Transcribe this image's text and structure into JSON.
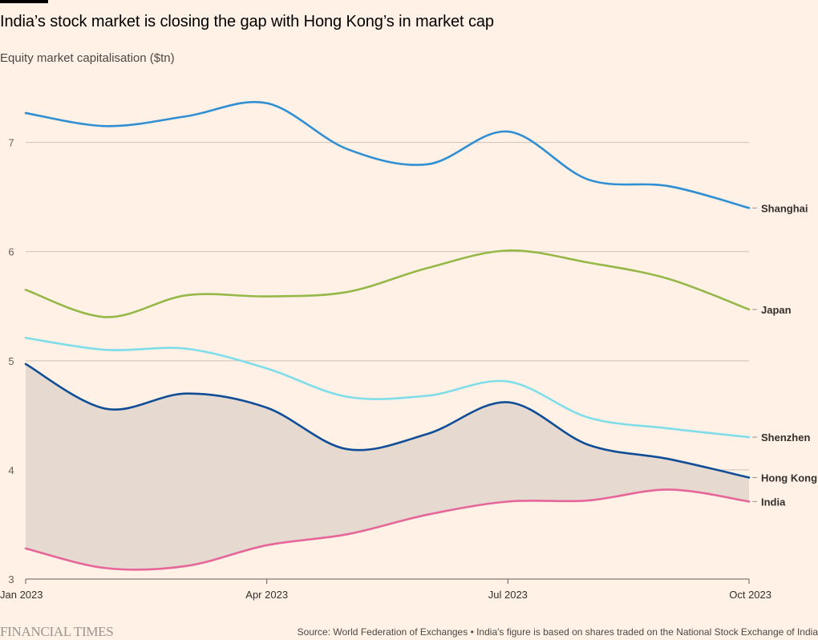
{
  "header": {
    "title": "India’s stock market is closing the gap with Hong Kong’s in market cap",
    "subtitle": "Equity market capitalisation ($tn)"
  },
  "footer": {
    "logo": "FINANCIAL TIMES",
    "source": "Source: World Federation of Exchanges • India's figure is based on shares traded on the National Stock Exchange of India"
  },
  "colors": {
    "background": "#fff1e5",
    "grid": "#ccc1b7",
    "shaded_gap": "#e5d9d0",
    "shanghai": "#2f8fd2",
    "japan": "#96b849",
    "shenzhen": "#7fdde9",
    "hong_kong": "#0f4e97",
    "india": "#e7669a"
  },
  "chart_data": {
    "type": "line",
    "x": [
      "Jan 2023",
      "Feb 2023",
      "Mar 2023",
      "Apr 2023",
      "May 2023",
      "Jun 2023",
      "Jul 2023",
      "Aug 2023",
      "Sep 2023",
      "Oct 2023"
    ],
    "x_ticks": [
      "Jan 2023",
      "Apr 2023",
      "Jul 2023",
      "Oct 2023"
    ],
    "y_ticks": [
      3,
      4,
      5,
      6,
      7
    ],
    "ylim": [
      3,
      7.6
    ],
    "grid": true,
    "shaded_area": {
      "between": [
        "Hong Kong",
        "India"
      ]
    },
    "series": [
      {
        "name": "Shanghai",
        "color": "#2f8fd2",
        "values": [
          7.27,
          7.15,
          7.24,
          7.36,
          6.94,
          6.8,
          7.1,
          6.66,
          6.6,
          6.4
        ]
      },
      {
        "name": "Japan",
        "color": "#96b849",
        "values": [
          5.65,
          5.4,
          5.6,
          5.59,
          5.63,
          5.85,
          6.01,
          5.9,
          5.75,
          5.47
        ]
      },
      {
        "name": "Shenzhen",
        "color": "#7fdde9",
        "values": [
          5.21,
          5.1,
          5.11,
          4.93,
          4.67,
          4.68,
          4.81,
          4.48,
          4.38,
          4.3
        ]
      },
      {
        "name": "Hong Kong",
        "color": "#0f4e97",
        "values": [
          4.97,
          4.56,
          4.7,
          4.57,
          4.19,
          4.33,
          4.62,
          4.23,
          4.1,
          3.93
        ]
      },
      {
        "name": "India",
        "color": "#e7669a",
        "values": [
          3.28,
          3.1,
          3.12,
          3.31,
          3.41,
          3.59,
          3.71,
          3.72,
          3.82,
          3.71
        ]
      }
    ]
  }
}
